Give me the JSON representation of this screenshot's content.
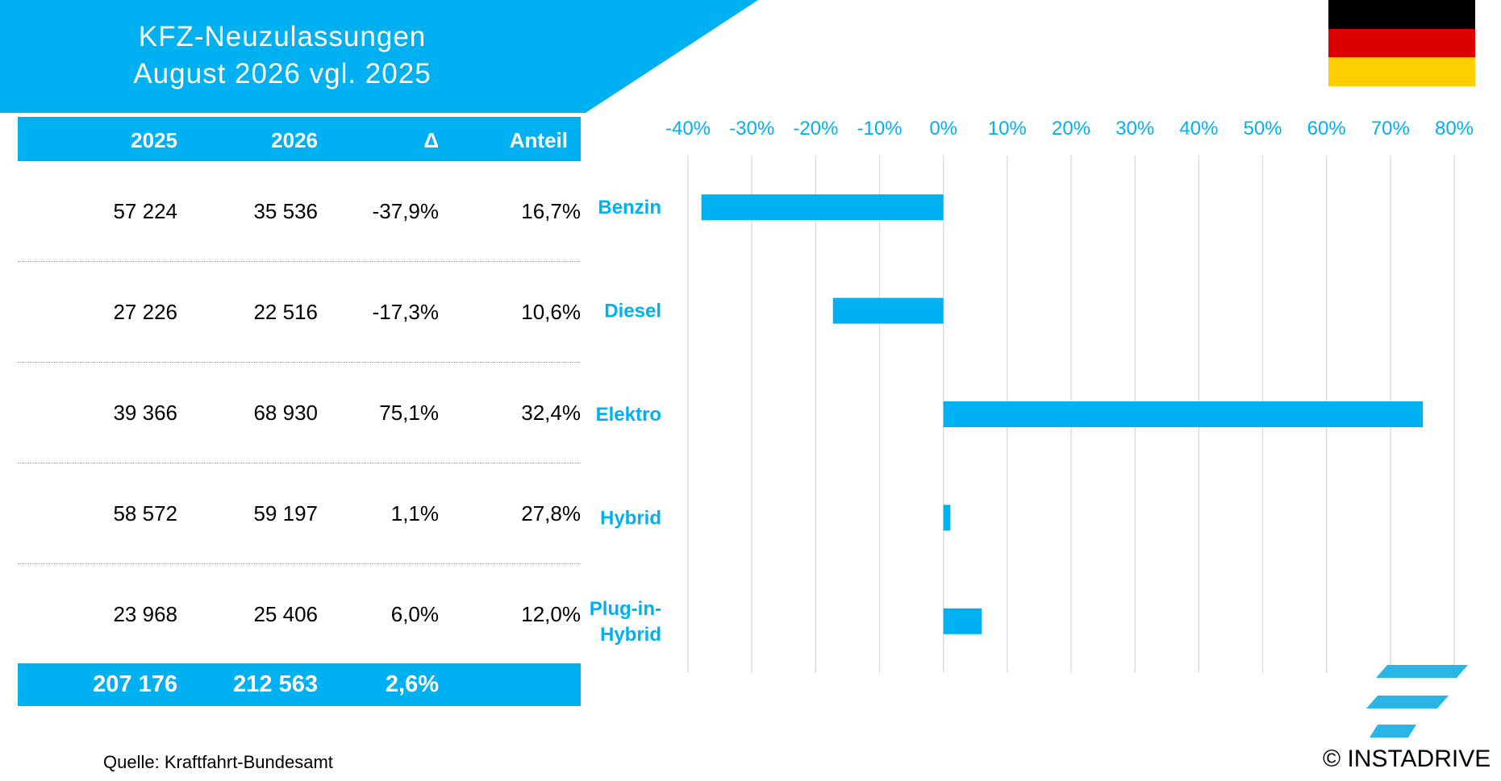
{
  "header": {
    "title_line1": "KFZ-Neuzulassungen",
    "title_line2": "August 2026 vgl. 2025",
    "color": "#00b0f0"
  },
  "flag": {
    "country": "Germany",
    "colors": [
      "#000000",
      "#dd0000",
      "#ffce00"
    ]
  },
  "table": {
    "columns": [
      "2025",
      "2026",
      "Δ",
      "Anteil"
    ],
    "rows": [
      {
        "y2025": "57 224",
        "y2026": "35 536",
        "delta": "-37,9%",
        "share": "16,7%"
      },
      {
        "y2025": "27 226",
        "y2026": "22 516",
        "delta": "-17,3%",
        "share": "10,6%"
      },
      {
        "y2025": "39 366",
        "y2026": "68 930",
        "delta": "75,1%",
        "share": "32,4%"
      },
      {
        "y2025": "58 572",
        "y2026": "59 197",
        "delta": "1,1%",
        "share": "27,8%"
      },
      {
        "y2025": "23 968",
        "y2026": "25 406",
        "delta": "6,0%",
        "share": "12,0%"
      }
    ],
    "total": {
      "y2025": "207 176",
      "y2026": "212 563",
      "delta": "2,6%"
    }
  },
  "chart_data": {
    "type": "bar",
    "orientation": "horizontal",
    "categories": [
      "Benzin",
      "Diesel",
      "Elektro",
      "Hybrid",
      "Plug-in-Hybrid"
    ],
    "values": [
      -37.9,
      -17.3,
      75.1,
      1.1,
      6.0
    ],
    "xlim": [
      -40,
      80
    ],
    "x_ticks": [
      "-40%",
      "-30%",
      "-20%",
      "-10%",
      "0%",
      "10%",
      "20%",
      "30%",
      "40%",
      "50%",
      "60%",
      "70%",
      "80%"
    ],
    "x_axis_position": "top",
    "grid": true,
    "bar_color": "#00b0f0",
    "label_color": "#00b0f0",
    "grid_color": "#d9d9d9"
  },
  "footer": {
    "source": "Quelle: Kraftfahrt-Bundesamt",
    "copyright": "© INSTADRIVE",
    "logo_icon": "instadrive-stripes-logo"
  }
}
